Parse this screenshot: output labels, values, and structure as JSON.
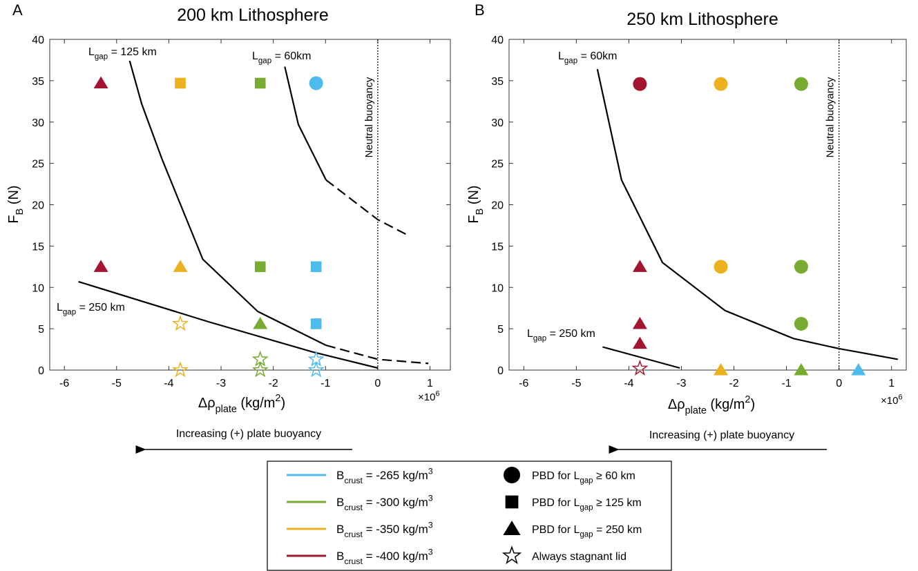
{
  "chart_data": [
    {
      "type": "scatter",
      "panel": "A",
      "title": "200 km Lithosphere",
      "xlabel": {
        "main": "Δρ",
        "sub": "plate",
        "rest": " (kg/m",
        "sup": "2",
        "end": ")"
      },
      "ylabel": {
        "main": "F",
        "sub": "B",
        "rest": " (N)"
      },
      "multiplier": {
        "main": "×10",
        "sup": "6"
      },
      "xlim": [
        -6.28,
        1.39
      ],
      "ylim": [
        0,
        40
      ],
      "xticks": [
        -6,
        -5,
        -4,
        -3,
        -2,
        -1,
        0,
        1
      ],
      "yticks": [
        0,
        5,
        10,
        15,
        20,
        25,
        30,
        35,
        40
      ],
      "vline": {
        "x": 0,
        "label": "Neutral buoyancy"
      },
      "arrow_text": "Increasing (+) plate buoyancy",
      "series": [
        {
          "color": "#a2142f",
          "x": [
            -5.3,
            -5.3
          ],
          "values": [
            34.7,
            12.5
          ],
          "markers": [
            "triangle",
            "triangle"
          ]
        },
        {
          "color": "#edb120",
          "x": [
            -3.78,
            -3.78,
            -3.78,
            -3.78
          ],
          "values": [
            34.7,
            12.5,
            5.6,
            0
          ],
          "markers": [
            "square",
            "triangle",
            "star",
            "star"
          ]
        },
        {
          "color": "#77ac30",
          "x": [
            -2.25,
            -2.25,
            -2.25,
            -2.25,
            -2.25
          ],
          "values": [
            34.7,
            12.5,
            5.6,
            1.3,
            0
          ],
          "markers": [
            "square",
            "square",
            "triangle",
            "star",
            "star"
          ]
        },
        {
          "color": "#4dbbeb",
          "x": [
            -1.18,
            -1.18,
            -1.18,
            -1.18,
            -1.18
          ],
          "values": [
            34.7,
            12.5,
            5.6,
            1.3,
            0
          ],
          "markers": [
            "circle",
            "square",
            "square",
            "star",
            "star"
          ]
        }
      ],
      "curves": [
        {
          "x": [
            -4.75,
            -4.52,
            -4.13,
            -3.35,
            -2.3,
            -0.99
          ],
          "values": [
            37.4,
            32.2,
            25.5,
            13.4,
            7.1,
            3.0
          ],
          "dashed": false
        },
        {
          "x": [
            -0.99,
            0,
            0.97
          ],
          "values": [
            3.0,
            1.3,
            0.8
          ],
          "dashed": true
        },
        {
          "x": [
            -1.78,
            -1.52,
            -0.99
          ],
          "values": [
            36.7,
            29.7,
            23.0
          ],
          "dashed": false
        },
        {
          "x": [
            -0.99,
            0,
            0.61
          ],
          "values": [
            23.0,
            18.2,
            16.2
          ],
          "dashed": true
        },
        {
          "x": [
            -5.73,
            -3.22,
            -1.25,
            0
          ],
          "values": [
            10.7,
            5.8,
            2.2,
            0.25
          ],
          "dashed": false
        }
      ],
      "annotations": [
        {
          "main": "L",
          "sub": "gap",
          "rest": " = 125 km"
        },
        {
          "main": "L",
          "sub": "gap",
          "rest": " = 60km"
        },
        {
          "main": "L",
          "sub": "gap",
          "rest": " = 250 km"
        }
      ]
    },
    {
      "type": "scatter",
      "panel": "B",
      "title": "250 km Lithosphere",
      "xlabel": {
        "main": "Δρ",
        "sub": "plate",
        "rest": " (kg/m",
        "sup": "2",
        "end": ")"
      },
      "ylabel": {
        "main": "F",
        "sub": "B",
        "rest": " (N)"
      },
      "multiplier": {
        "main": "×10",
        "sup": "6"
      },
      "xlim": [
        -6.28,
        1.28
      ],
      "ylim": [
        0,
        40
      ],
      "xticks": [
        -6,
        -5,
        -4,
        -3,
        -2,
        -1,
        0,
        1
      ],
      "yticks": [
        0,
        5,
        10,
        15,
        20,
        25,
        30,
        35,
        40
      ],
      "vline": {
        "x": 0,
        "label": "Neutral buoyancy"
      },
      "arrow_text": "Increasing (+) plate buoyancy",
      "series": [
        {
          "color": "#a2142f",
          "x": [
            -3.79,
            -3.79,
            -3.79,
            -3.79,
            -3.79
          ],
          "values": [
            34.6,
            12.5,
            5.6,
            3.2,
            0.2
          ],
          "markers": [
            "circle",
            "triangle",
            "triangle",
            "triangle",
            "star"
          ]
        },
        {
          "color": "#edb120",
          "x": [
            -2.25,
            -2.25,
            -2.25
          ],
          "values": [
            34.6,
            12.5,
            0
          ],
          "markers": [
            "circle",
            "circle",
            "triangle"
          ]
        },
        {
          "color": "#77ac30",
          "x": [
            -0.72,
            -0.72,
            -0.72,
            -0.72
          ],
          "values": [
            34.6,
            12.5,
            5.6,
            0
          ],
          "markers": [
            "circle",
            "circle",
            "circle",
            "triangle"
          ]
        },
        {
          "color": "#4dbbeb",
          "x": [
            0.37
          ],
          "values": [
            0
          ],
          "markers": [
            "triangle"
          ]
        }
      ],
      "curves": [
        {
          "x": [
            -4.6,
            -4.14,
            -3.36,
            -2.17,
            -0.86,
            0,
            1.12
          ],
          "values": [
            36.4,
            23.0,
            13.0,
            7.2,
            3.8,
            2.6,
            1.3
          ],
          "dashed": false
        },
        {
          "x": [
            -4.5,
            -3.03
          ],
          "values": [
            2.8,
            0.25
          ],
          "dashed": false
        }
      ],
      "annotations": [
        {
          "main": "L",
          "sub": "gap",
          "rest": " = 60km"
        },
        {
          "main": "L",
          "sub": "gap",
          "rest": " = 250 km"
        }
      ]
    }
  ],
  "legend": {
    "colors": [
      {
        "main": "B",
        "sub": "crust",
        "rest": " = -265 kg/m",
        "sup": "3",
        "color": "#4dbbeb"
      },
      {
        "main": "B",
        "sub": "crust",
        "rest": " = -300 kg/m",
        "sup": "3",
        "color": "#77ac30"
      },
      {
        "main": "B",
        "sub": "crust",
        "rest": " = -350 kg/m",
        "sup": "3",
        "color": "#edb120"
      },
      {
        "main": "B",
        "sub": "crust",
        "rest": " = -400 kg/m",
        "sup": "3",
        "color": "#a2142f"
      }
    ],
    "markers": [
      {
        "marker": "circle",
        "main": "PBD for L",
        "sub": "gap",
        "rest": " ≥ 60 km"
      },
      {
        "marker": "square",
        "main": "PBD for L",
        "sub": "gap",
        "rest": " ≥ 125 km"
      },
      {
        "marker": "triangle",
        "main": "PBD for L",
        "sub": "gap",
        "rest": " = 250 km"
      },
      {
        "marker": "star",
        "main": "Always stagnant lid"
      }
    ]
  }
}
